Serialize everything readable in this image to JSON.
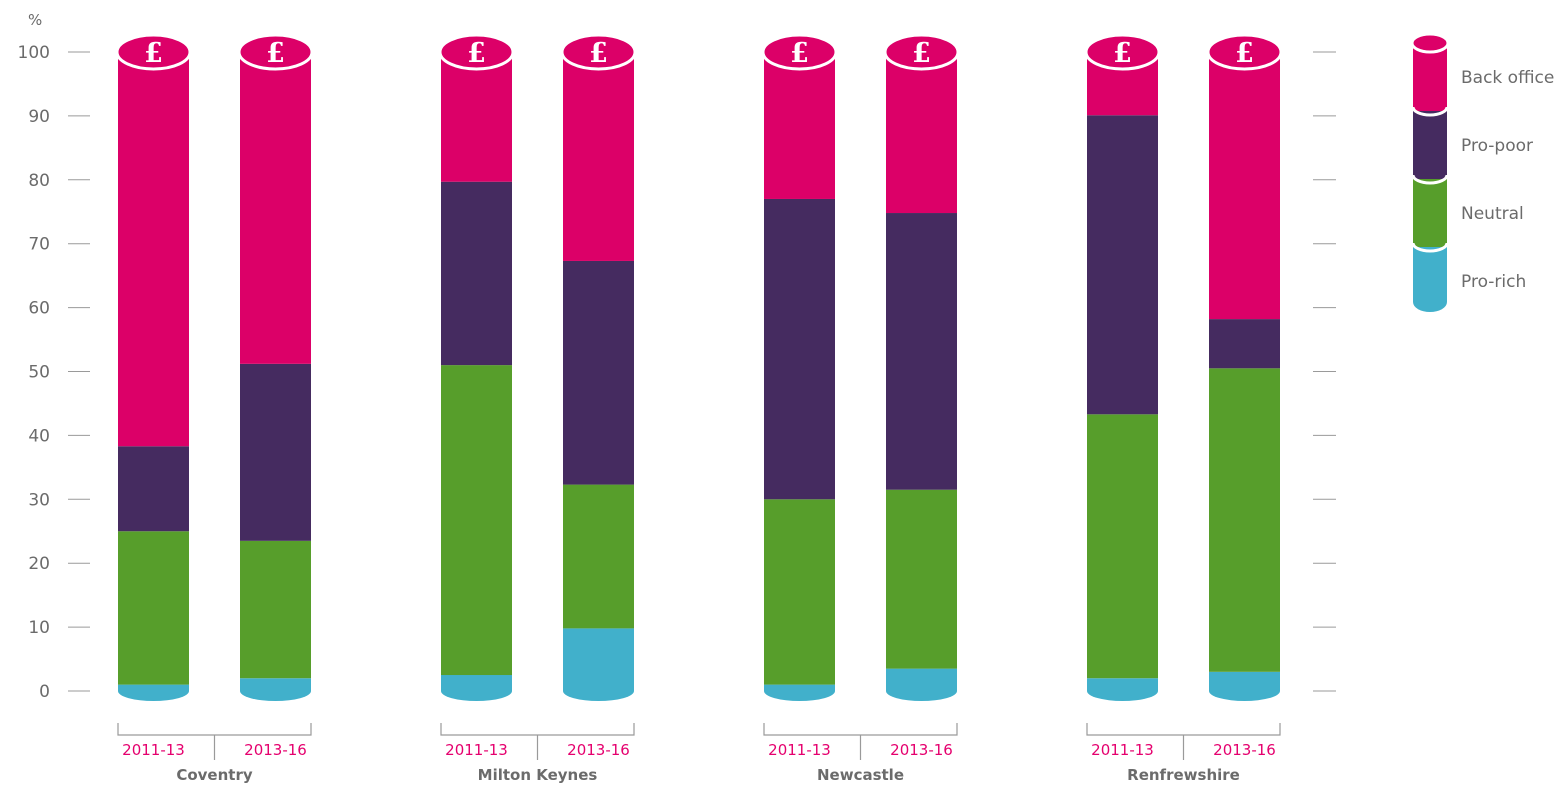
{
  "chart_data": {
    "type": "bar",
    "stacked": true,
    "y_unit": "%",
    "ylim": [
      0,
      100
    ],
    "yticks": [
      0,
      10,
      20,
      30,
      40,
      50,
      60,
      70,
      80,
      90,
      100
    ],
    "grid": false,
    "legend_position": "right",
    "coin_symbol": "£",
    "groups": [
      "Coventry",
      "Milton Keynes",
      "Newcastle",
      "Renfrewshire"
    ],
    "periods": [
      "2011-13",
      "2013-16"
    ],
    "series": [
      {
        "name": "Pro-rich",
        "color": "#41b0cb",
        "values": [
          [
            1,
            2
          ],
          [
            2.5,
            9.8
          ],
          [
            1,
            3.5
          ],
          [
            2,
            3
          ]
        ]
      },
      {
        "name": "Neutral",
        "color": "#579e2b",
        "values": [
          [
            24,
            21.5
          ],
          [
            48.5,
            22.5
          ],
          [
            29,
            28
          ],
          [
            41.3,
            47.5
          ]
        ]
      },
      {
        "name": "Pro-poor",
        "color": "#452b60",
        "values": [
          [
            13.3,
            27.7
          ],
          [
            28.7,
            35
          ],
          [
            47,
            43.3
          ],
          [
            46.8,
            7.7
          ]
        ]
      },
      {
        "name": "Back office",
        "color": "#dc0068",
        "values": [
          [
            61.7,
            48.8
          ],
          [
            20.3,
            32.7
          ],
          [
            23,
            25.2
          ],
          [
            9.9,
            41.8
          ]
        ]
      }
    ]
  }
}
